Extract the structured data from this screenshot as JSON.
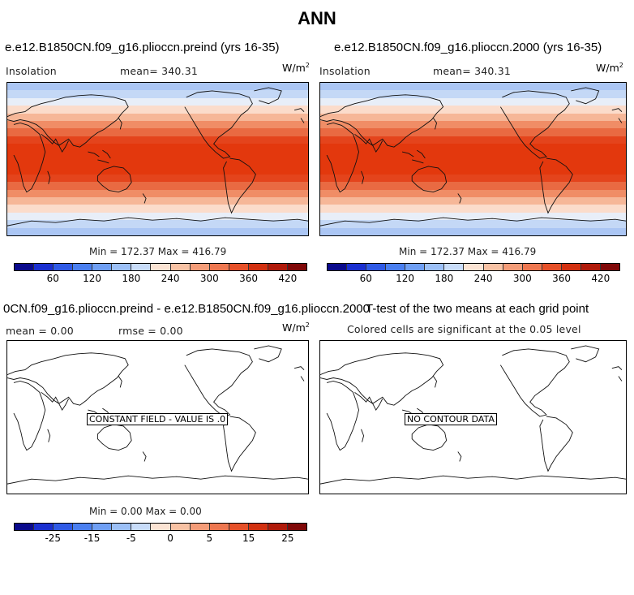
{
  "title": "ANN",
  "panels": {
    "top_left": {
      "case_title": "e.e12.B1850CN.f09_g16.plioccn.preind (yrs 16-35)",
      "variable": "Insolation",
      "mean_text": "mean= 340.31",
      "units_base": "W/m",
      "units_exp": "2",
      "minmax": "Min = 172.37 Max = 416.79"
    },
    "top_right": {
      "case_title": "e.e12.B1850CN.f09_g16.plioccn.2000 (yrs 16-35)",
      "variable": "Insolation",
      "mean_text": "mean= 340.31",
      "units_base": "W/m",
      "units_exp": "2",
      "minmax": "Min = 172.37 Max = 416.79"
    },
    "bottom_left": {
      "case_title": "0CN.f09_g16.plioccn.preind - e.e12.B1850CN.f09_g16.plioccn.2000",
      "mean_text": "mean =   0.00",
      "rmse_text": "rmse =   0.00",
      "units_base": "W/m",
      "units_exp": "2",
      "note": "CONSTANT FIELD - VALUE IS .0",
      "minmax": "Min =  0.00 Max =  0.00"
    },
    "bottom_right": {
      "case_title": "T-test of the two means at each grid point",
      "subtitle": "Colored cells are significant at the 0.05 level",
      "note": "NO CONTOUR DATA"
    }
  },
  "insolation_colorbar": {
    "colors": [
      "#0a0a8c",
      "#1a2fd0",
      "#2f5ae6",
      "#4a7ff0",
      "#6f9ff4",
      "#9cc0f7",
      "#c8dcf9",
      "#fbe3d3",
      "#f8c2a4",
      "#f49c78",
      "#ee7750",
      "#e65028",
      "#d23010",
      "#b01a0a",
      "#800808"
    ],
    "tick_labels": [
      "60",
      "120",
      "180",
      "240",
      "300",
      "360",
      "420"
    ]
  },
  "difference_colorbar": {
    "colors": [
      "#0a0a8c",
      "#1a2fd0",
      "#2f5ae6",
      "#4a7ff0",
      "#6f9ff4",
      "#9cc0f7",
      "#c8dcf9",
      "#fbe3d3",
      "#f8c2a4",
      "#f49c78",
      "#ee7750",
      "#e65028",
      "#d23010",
      "#b01a0a",
      "#800808"
    ],
    "tick_labels": [
      "-25",
      "-15",
      "-5",
      "0",
      "5",
      "15",
      "25"
    ]
  },
  "insolation_bands": [
    "#abc6f4",
    "#c4d8f6",
    "#e8eef8",
    "#fbdccb",
    "#f6b798",
    "#f08d66",
    "#e96a42",
    "#e4441c",
    "#e3380d",
    "#e3380d",
    "#e3380d",
    "#e3380d",
    "#e4441c",
    "#e96a42",
    "#f08d66",
    "#f6b798",
    "#fbdccb",
    "#e8eef8",
    "#c4d8f6",
    "#abc6f4"
  ]
}
